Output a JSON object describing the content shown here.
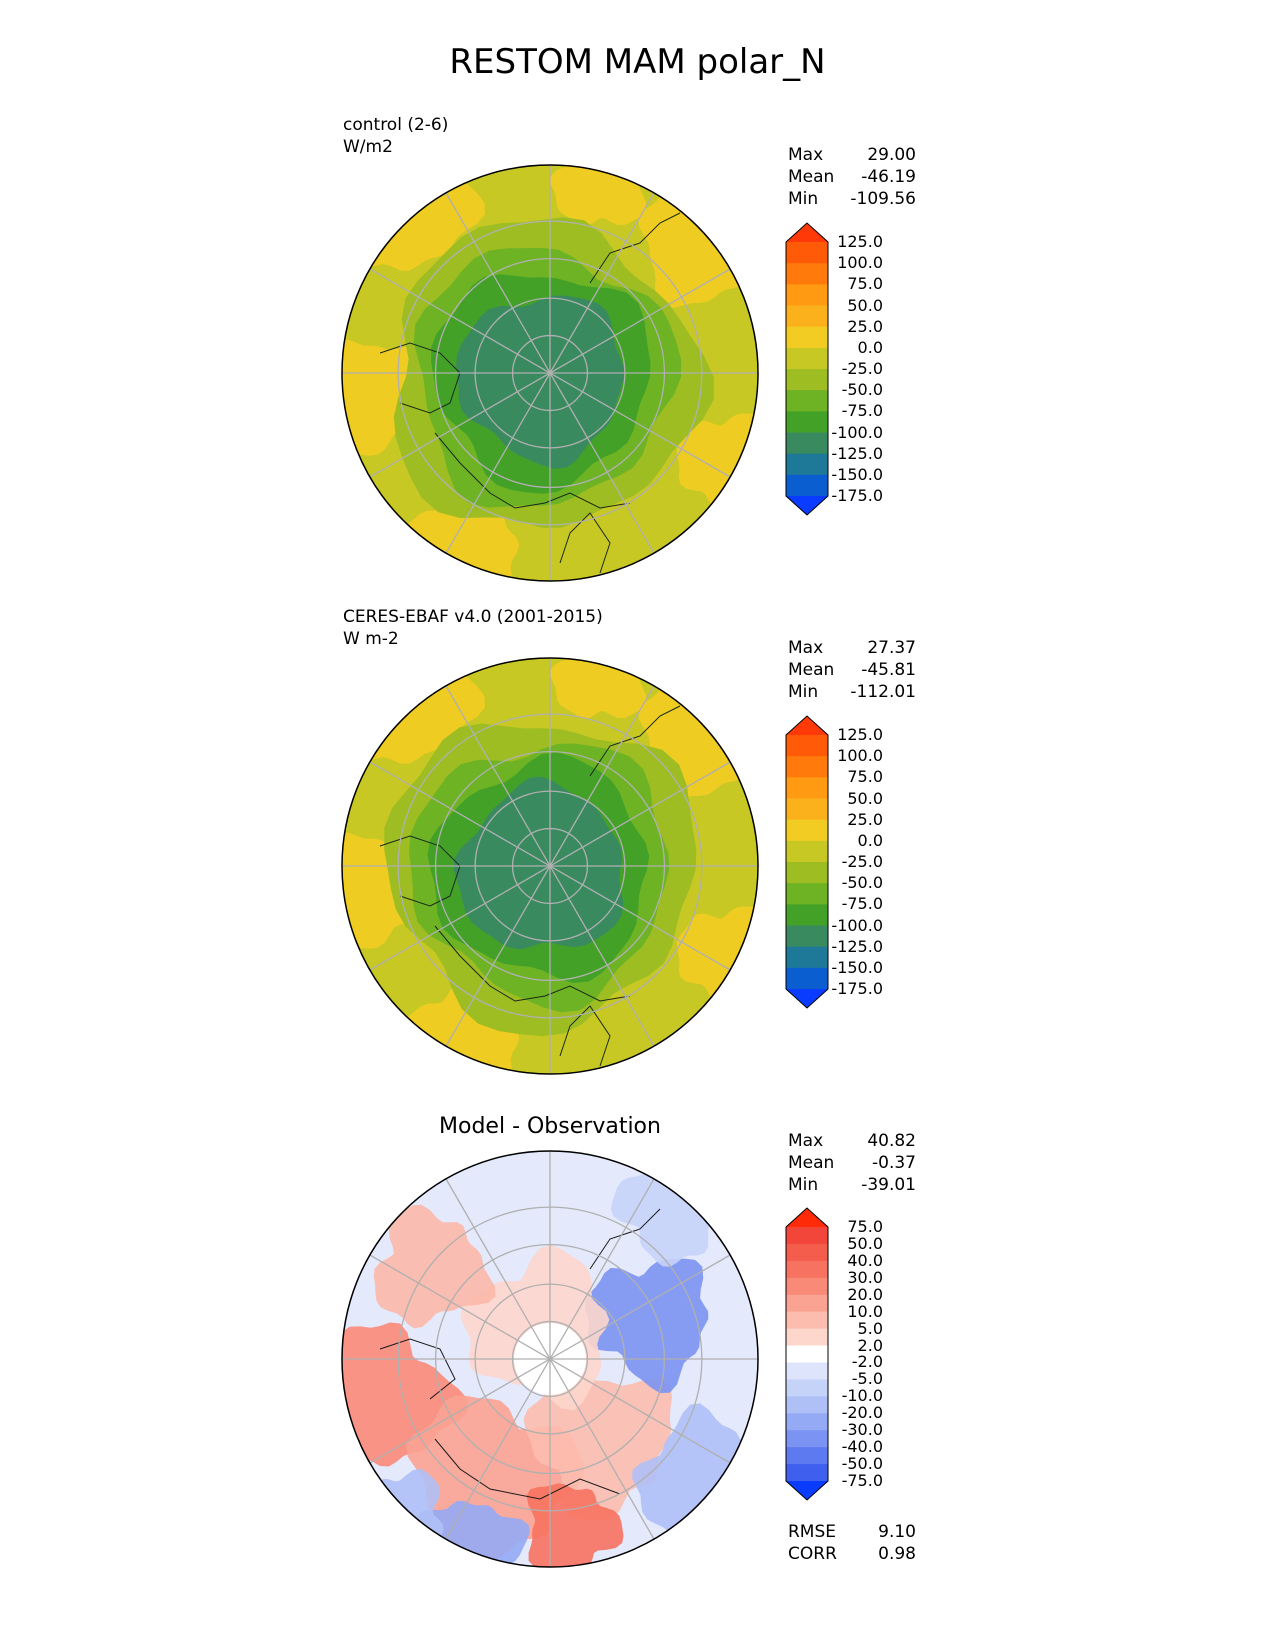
{
  "chart_data": {
    "type": "heatmap",
    "title": "RESTOM MAM polar_N",
    "panels": [
      {
        "id": "test",
        "label_line1": "control (2-6)",
        "label_line2": "W/m2",
        "stats": [
          {
            "label": "Max",
            "value": "29.00"
          },
          {
            "label": "Mean",
            "value": "-46.19"
          },
          {
            "label": "Min",
            "value": "-109.56"
          }
        ],
        "colorbar": {
          "ticks": [
            "125.0",
            "100.0",
            "75.0",
            "50.0",
            "25.0",
            "0.0",
            "-25.0",
            "-50.0",
            "-75.0",
            "-100.0",
            "-125.0",
            "-150.0",
            "-175.0"
          ],
          "colors": [
            "#ff3a08",
            "#ff5a08",
            "#ff7a0a",
            "#ff9a12",
            "#fbb11c",
            "#f2cc22",
            "#c8c824",
            "#9ebd22",
            "#6eb324",
            "#44a128",
            "#3a8a60",
            "#1e7898",
            "#0a5ed0",
            "#0a3cff"
          ]
        }
      },
      {
        "id": "reference",
        "label_line1": "CERES-EBAF v4.0 (2001-2015)",
        "label_line2": "W m-2",
        "stats": [
          {
            "label": "Max",
            "value": "27.37"
          },
          {
            "label": "Mean",
            "value": "-45.81"
          },
          {
            "label": "Min",
            "value": "-112.01"
          }
        ],
        "colorbar": {
          "ticks": [
            "125.0",
            "100.0",
            "75.0",
            "50.0",
            "25.0",
            "0.0",
            "-25.0",
            "-50.0",
            "-75.0",
            "-100.0",
            "-125.0",
            "-150.0",
            "-175.0"
          ],
          "colors": [
            "#ff3a08",
            "#ff5a08",
            "#ff7a0a",
            "#ff9a12",
            "#fbb11c",
            "#f2cc22",
            "#c8c824",
            "#9ebd22",
            "#6eb324",
            "#44a128",
            "#3a8a60",
            "#1e7898",
            "#0a5ed0",
            "#0a3cff"
          ]
        }
      },
      {
        "id": "difference",
        "title": "Model - Observation",
        "stats": [
          {
            "label": "Max",
            "value": "40.82"
          },
          {
            "label": "Mean",
            "value": "-0.37"
          },
          {
            "label": "Min",
            "value": "-39.01"
          }
        ],
        "bottom_stats": [
          {
            "label": "RMSE",
            "value": "9.10"
          },
          {
            "label": "CORR",
            "value": "0.98"
          }
        ],
        "colorbar": {
          "ticks": [
            "75.0",
            "50.0",
            "40.0",
            "30.0",
            "20.0",
            "10.0",
            "5.0",
            "2.0",
            "-2.0",
            "-5.0",
            "-10.0",
            "-20.0",
            "-30.0",
            "-40.0",
            "-50.0",
            "-75.0"
          ],
          "colors": [
            "#ff2a08",
            "#f2463a",
            "#f45c4c",
            "#f77260",
            "#f98a78",
            "#fba392",
            "#fcbcae",
            "#fdd6cc",
            "#ffffff",
            "#dde4fb",
            "#c6d3f9",
            "#afc0f7",
            "#94aaf5",
            "#7b93f2",
            "#5e7af0",
            "#3f60ee",
            "#0a3cff"
          ]
        }
      }
    ]
  }
}
